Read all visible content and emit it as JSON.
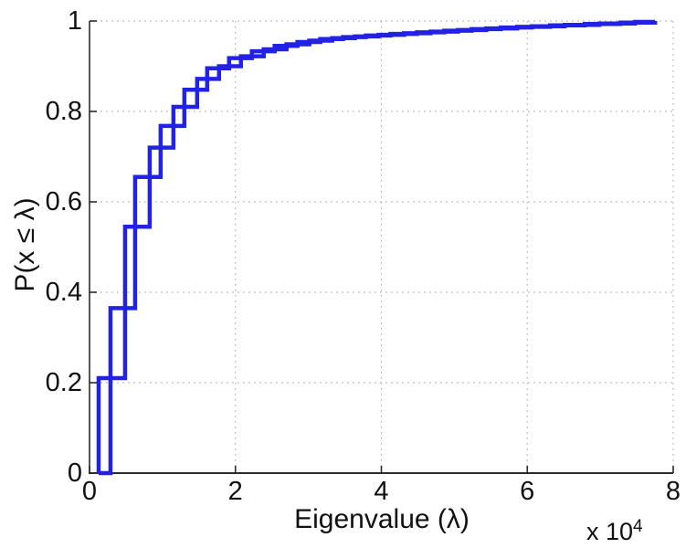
{
  "figure": {
    "background": "#ffffff",
    "line_color": "#2222e6",
    "axis_color": "#2b2b2b",
    "grid_color": "#b8b8b8",
    "text_color": "#111111",
    "axis_multiplier": "x 10",
    "axis_multiplier_exp": "4"
  },
  "chart_data": {
    "type": "line",
    "subtype": "ecdf-stairs",
    "title": "",
    "xlabel": "Eigenvalue (λ)",
    "ylabel": "P(x ≤ λ)",
    "xlim": [
      0,
      80000
    ],
    "ylim": [
      0,
      1
    ],
    "x_axis_multiplier": 10000,
    "grid": true,
    "legend": false,
    "x_tick_values": [
      0,
      20000,
      40000,
      60000,
      80000
    ],
    "x_tick_labels": [
      "0",
      "2",
      "4",
      "6",
      "8"
    ],
    "y_tick_values": [
      0,
      0.2,
      0.4,
      0.6,
      0.8,
      1
    ],
    "y_tick_labels": [
      "0",
      "0.2",
      "0.4",
      "0.6",
      "0.8",
      "1"
    ],
    "series": [
      {
        "name": "ecdf-curve-1",
        "x": [
          1250,
          4875,
          8250,
          11500,
          14750,
          17750,
          20750,
          23875,
          27000,
          30125,
          33250,
          36375,
          39625,
          43125,
          46750,
          50500,
          54375,
          58625,
          63125,
          67875,
          72750,
          77500
        ],
        "y": [
          0.21,
          0.545,
          0.72,
          0.81,
          0.872,
          0.9,
          0.922,
          0.9375,
          0.9485,
          0.9565,
          0.962,
          0.966,
          0.9695,
          0.973,
          0.9765,
          0.98,
          0.9835,
          0.987,
          0.9905,
          0.9935,
          0.9965,
          1.0
        ]
      },
      {
        "name": "ecdf-curve-2",
        "x": [
          1250,
          2875,
          6250,
          9750,
          13000,
          16125,
          19125,
          22250,
          25375,
          28500,
          31625,
          34750,
          37875,
          41250,
          44875,
          48625,
          52375,
          56375,
          60625,
          65125,
          69875,
          74750,
          77500
        ],
        "y": [
          0,
          0.365,
          0.655,
          0.768,
          0.848,
          0.8955,
          0.918,
          0.933,
          0.945,
          0.9535,
          0.96,
          0.9645,
          0.968,
          0.9715,
          0.975,
          0.9785,
          0.982,
          0.9855,
          0.9885,
          0.9915,
          0.9945,
          0.998,
          1.0
        ]
      }
    ]
  }
}
